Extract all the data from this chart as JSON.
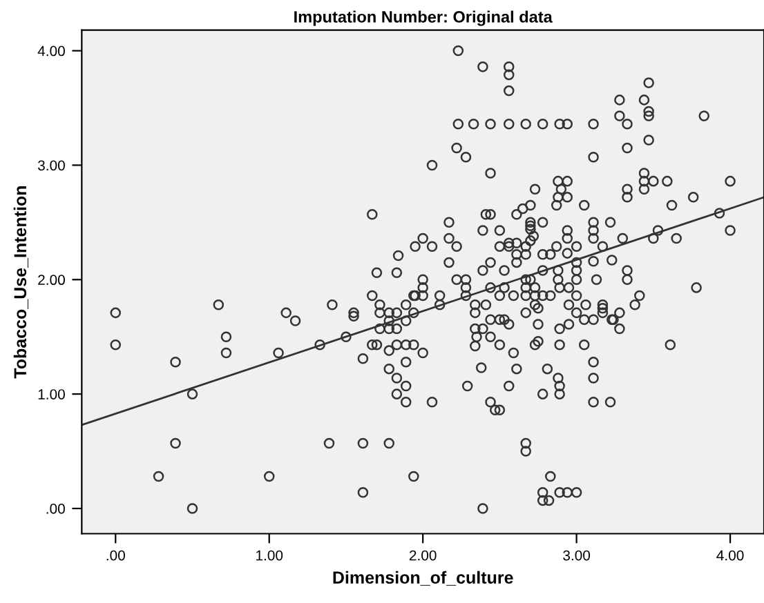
{
  "chart_data": {
    "type": "scatter",
    "title": "Imputation Number: Original data",
    "xlabel": "Dimension_of_culture",
    "ylabel": "Tobacco_Use_Intention",
    "xlim": [
      -0.22,
      4.22
    ],
    "ylim": [
      -0.22,
      4.18
    ],
    "xticks": [
      {
        "value": 0,
        "label": ".00"
      },
      {
        "value": 1,
        "label": "1.00"
      },
      {
        "value": 2,
        "label": "2.00"
      },
      {
        "value": 3,
        "label": "3.00"
      },
      {
        "value": 4,
        "label": "4.00"
      }
    ],
    "yticks": [
      {
        "value": 0,
        "label": ".00"
      },
      {
        "value": 1,
        "label": "1.00"
      },
      {
        "value": 2,
        "label": "2.00"
      },
      {
        "value": 3,
        "label": "3.00"
      },
      {
        "value": 4,
        "label": "4.00"
      }
    ],
    "grid": false,
    "legend": false,
    "series": [
      {
        "marker": "circle",
        "color": "#333333",
        "x": [
          0.0,
          0.0,
          0.39,
          0.5,
          0.39,
          0.28,
          0.5,
          0.67,
          0.72,
          0.72,
          1.0,
          1.06,
          1.11,
          1.17,
          1.33,
          1.41,
          1.39,
          1.5,
          1.55,
          1.55,
          1.67,
          1.61,
          1.61,
          1.61,
          1.72,
          1.72,
          1.78,
          1.83,
          1.78,
          1.72,
          1.78,
          1.83,
          1.67,
          1.7,
          1.78,
          1.83,
          1.89,
          1.94,
          1.89,
          1.78,
          1.83,
          1.89,
          1.83,
          1.89,
          1.78,
          1.94,
          1.89,
          1.94,
          1.89,
          1.94,
          1.7,
          1.83,
          1.67,
          1.84,
          2.23,
          2.39,
          2.56,
          2.56,
          2.56,
          2.23,
          2.33,
          2.44,
          2.56,
          2.67,
          2.78,
          2.89,
          2.94,
          3.11,
          3.28,
          3.28,
          3.33,
          3.44,
          3.47,
          3.47,
          3.47,
          3.47,
          3.83,
          2.22,
          2.28,
          2.06,
          3.11,
          3.33,
          2.44,
          2.88,
          2.94,
          2.73,
          2.88,
          2.94,
          2.9,
          2.87,
          3.05,
          3.33,
          3.33,
          3.44,
          3.44,
          3.44,
          3.5,
          3.59,
          3.62,
          3.76,
          4.0,
          4.0,
          3.93,
          2.41,
          2.44,
          2.61,
          2.65,
          2.7,
          2.7,
          2.7,
          2.7,
          2.78,
          2.72,
          2.17,
          2.39,
          2.5,
          2.17,
          2.0,
          1.95,
          2.06,
          2.22,
          2.17,
          2.0,
          2.22,
          2.28,
          2.39,
          2.44,
          2.53,
          2.5,
          2.56,
          2.56,
          2.61,
          2.67,
          2.61,
          2.67,
          2.61,
          2.7,
          2.78,
          2.83,
          2.87,
          2.94,
          2.94,
          2.94,
          3.0,
          3.0,
          3.0,
          3.0,
          2.88,
          2.88,
          2.78,
          2.67,
          2.7,
          3.11,
          3.11,
          3.11,
          3.11,
          3.17,
          3.13,
          3.22,
          3.23,
          3.3,
          3.33,
          3.33,
          3.5,
          3.53,
          3.65,
          2.0,
          2.28,
          1.95,
          2.0,
          2.11,
          2.28,
          2.11,
          2.44,
          2.53,
          2.34,
          2.34,
          2.41,
          2.5,
          2.59,
          2.67,
          2.67,
          2.73,
          2.73,
          2.78,
          2.83,
          2.67,
          2.73,
          2.75,
          2.89,
          2.95,
          3.0,
          2.95,
          3.0,
          3.06,
          3.17,
          3.17,
          3.17,
          3.28,
          3.38,
          3.41,
          3.78,
          2.34,
          2.39,
          2.35,
          2.34,
          2.44,
          2.5,
          2.53,
          2.56,
          2.44,
          2.5,
          2.59,
          2.75,
          2.73,
          2.75,
          2.89,
          2.95,
          2.89,
          3.05,
          3.11,
          3.05,
          3.23,
          3.24,
          3.28,
          3.61,
          2.0,
          2.06,
          2.38,
          2.29,
          2.61,
          2.56,
          2.44,
          2.47,
          2.5,
          2.81,
          2.88,
          2.89,
          2.89,
          2.78,
          3.11,
          3.11,
          3.11,
          3.22,
          2.67,
          2.67,
          2.39,
          2.83,
          2.78,
          2.78,
          2.82,
          2.89,
          2.94,
          3.0
        ],
        "values": [
          1.71,
          1.43,
          1.28,
          1.0,
          0.57,
          0.28,
          0.0,
          1.78,
          1.5,
          1.36,
          0.28,
          1.36,
          1.71,
          1.64,
          1.43,
          1.78,
          0.57,
          1.5,
          1.71,
          1.68,
          1.86,
          1.31,
          0.57,
          0.14,
          1.78,
          1.71,
          1.71,
          1.71,
          1.64,
          1.57,
          1.57,
          1.57,
          1.43,
          1.43,
          1.38,
          1.43,
          1.43,
          1.43,
          1.28,
          1.22,
          1.14,
          1.07,
          1.0,
          0.93,
          0.57,
          0.28,
          1.78,
          1.86,
          1.64,
          1.71,
          2.06,
          2.06,
          2.57,
          2.21,
          4.0,
          3.86,
          3.86,
          3.79,
          3.65,
          3.36,
          3.36,
          3.36,
          3.36,
          3.36,
          3.36,
          3.36,
          3.36,
          3.36,
          3.57,
          3.43,
          3.36,
          3.57,
          3.72,
          3.47,
          3.43,
          3.22,
          3.43,
          3.15,
          3.07,
          3.0,
          3.07,
          3.15,
          2.93,
          2.86,
          2.86,
          2.79,
          2.72,
          2.72,
          2.79,
          2.65,
          2.65,
          2.79,
          2.72,
          2.93,
          2.86,
          2.79,
          2.86,
          2.86,
          2.65,
          2.72,
          2.86,
          2.43,
          2.58,
          2.57,
          2.57,
          2.57,
          2.62,
          2.65,
          2.5,
          2.47,
          2.44,
          2.5,
          2.38,
          2.5,
          2.43,
          2.43,
          2.36,
          2.36,
          2.29,
          2.29,
          2.29,
          2.15,
          2.0,
          2.0,
          2.0,
          2.08,
          2.15,
          2.08,
          2.29,
          2.29,
          2.32,
          2.32,
          2.29,
          2.22,
          2.22,
          2.15,
          2.34,
          2.22,
          2.22,
          2.29,
          2.43,
          2.36,
          2.23,
          2.29,
          2.15,
          2.08,
          2.0,
          2.08,
          2.0,
          2.08,
          2.0,
          2.0,
          2.5,
          2.43,
          2.36,
          2.16,
          2.29,
          2.0,
          2.5,
          2.17,
          2.36,
          2.08,
          2.0,
          2.36,
          2.43,
          2.36,
          1.93,
          1.93,
          1.86,
          1.86,
          1.86,
          1.86,
          1.78,
          1.93,
          1.93,
          1.78,
          1.71,
          1.78,
          1.86,
          1.86,
          1.93,
          1.86,
          1.93,
          1.86,
          1.86,
          1.86,
          1.71,
          1.78,
          1.75,
          1.93,
          1.93,
          1.86,
          1.78,
          1.71,
          1.78,
          1.78,
          1.75,
          1.71,
          1.71,
          1.78,
          1.86,
          1.93,
          1.57,
          1.57,
          1.5,
          1.42,
          1.65,
          1.65,
          1.65,
          1.61,
          1.5,
          1.43,
          1.36,
          1.61,
          1.43,
          1.46,
          1.57,
          1.61,
          1.43,
          1.65,
          1.65,
          1.43,
          1.65,
          1.65,
          1.57,
          1.43,
          1.36,
          0.93,
          1.23,
          1.07,
          1.22,
          1.07,
          0.93,
          0.86,
          0.86,
          1.22,
          1.14,
          1.07,
          1.0,
          1.0,
          1.28,
          1.14,
          0.93,
          0.93,
          0.57,
          0.5,
          0.0,
          0.28,
          0.14,
          0.07,
          0.07,
          0.14,
          0.14,
          0.14
        ]
      },
      {
        "type": "line",
        "color": "#333333",
        "line_style": "solid",
        "x": [
          -0.22,
          4.22
        ],
        "values": [
          0.73,
          2.72
        ]
      }
    ]
  }
}
